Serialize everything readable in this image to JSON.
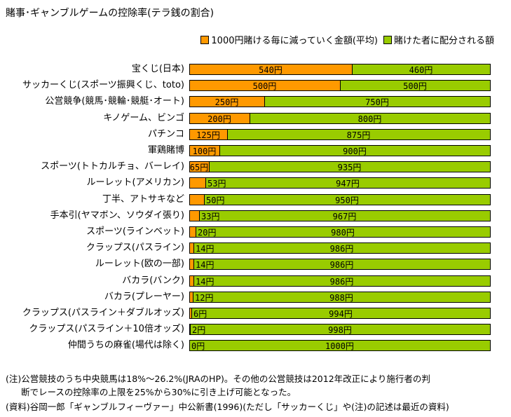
{
  "chart_data": {
    "type": "bar",
    "orientation": "horizontal",
    "stacked": true,
    "title": "賭事･ギャンブルゲームの控除率(テラ銭の割合)",
    "unit_suffix": "円",
    "xlim": [
      0,
      1000
    ],
    "legend_position": "top-right",
    "categories": [
      "宝くじ(日本)",
      "サッカーくじ(スポーツ振興くじ、toto)",
      "公営競争(競馬･競輪･競艇･オート)",
      "キノゲーム、ビンゴ",
      "パチンコ",
      "軍鶏賭博",
      "スポーツ(トトカルチョ、バーレイ)",
      "ルーレット(アメリカン)",
      "丁半、アトサキなど",
      "手本引(ヤマボン、ソウダイ張り)",
      "スポーツ(ラインベット)",
      "クラップス(パスライン)",
      "ルーレット(欧の一部)",
      "バカラ(バンク)",
      "バカラ(プレーヤー)",
      "クラップス(パスライン＋ダブルオッズ)",
      "クラップス(パスライン＋10倍オッズ)",
      "仲間うちの麻雀(場代は除く)"
    ],
    "series": [
      {
        "name": "1000円賭ける毎に減っていく金額(平均)",
        "color": "#FF9900",
        "values": [
          540,
          500,
          250,
          200,
          125,
          100,
          65,
          53,
          50,
          33,
          20,
          14,
          14,
          14,
          12,
          6,
          2,
          0
        ]
      },
      {
        "name": "賭けた者に配分される額",
        "color": "#99CC00",
        "values": [
          460,
          500,
          750,
          800,
          875,
          900,
          935,
          947,
          950,
          967,
          980,
          986,
          986,
          986,
          988,
          994,
          998,
          1000
        ]
      }
    ]
  },
  "notes": [
    "(注)公営競技のうち中央競馬は18%～26.2%(JRAのHP)。その他の公営競技は2012年改正により施行者の判",
    "断でレースの控除率の上限を25%から30%に引き上げ可能となった。",
    "(資料)谷岡一郎「ギャンブルフィーヴァー」中公新書(1996)(ただし「サッカーくじ」や(注)の記述は最近の資料)"
  ]
}
